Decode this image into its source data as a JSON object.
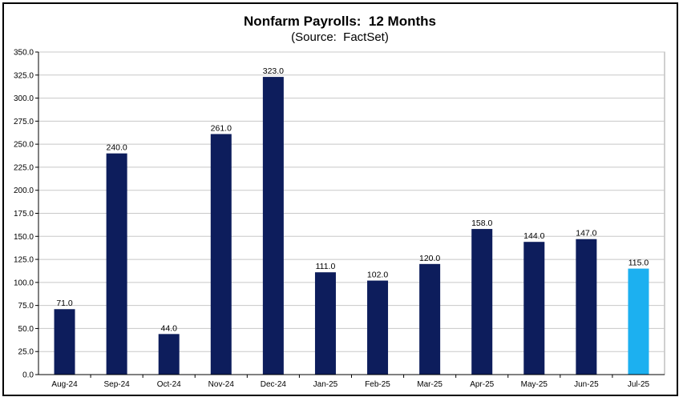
{
  "chart_data": {
    "type": "bar",
    "title": "Nonfarm Payrolls:  12 Months",
    "subtitle": "(Source:  FactSet)",
    "categories": [
      "Aug-24",
      "Sep-24",
      "Oct-24",
      "Nov-24",
      "Dec-24",
      "Jan-25",
      "Feb-25",
      "Mar-25",
      "Apr-25",
      "May-25",
      "Jun-25",
      "Jul-25"
    ],
    "values": [
      71.0,
      240.0,
      44.0,
      261.0,
      323.0,
      111.0,
      102.0,
      120.0,
      158.0,
      144.0,
      147.0,
      115.0
    ],
    "data_labels": [
      "71.0",
      "240.0",
      "44.0",
      "261.0",
      "323.0",
      "111.0",
      "102.0",
      "120.0",
      "158.0",
      "144.0",
      "147.0",
      "115.0"
    ],
    "y_ticks": [
      "0.0",
      "25.0",
      "50.0",
      "75.0",
      "100.0",
      "125.0",
      "150.0",
      "175.0",
      "200.0",
      "225.0",
      "250.0",
      "275.0",
      "300.0",
      "325.0",
      "350.0"
    ],
    "ylim": [
      0,
      350
    ],
    "ytick_step": 25,
    "grid": true,
    "legend": "none",
    "bar_color": "#0d1d5c",
    "highlight_color": "#1cb0f0",
    "highlight_index": 11
  }
}
